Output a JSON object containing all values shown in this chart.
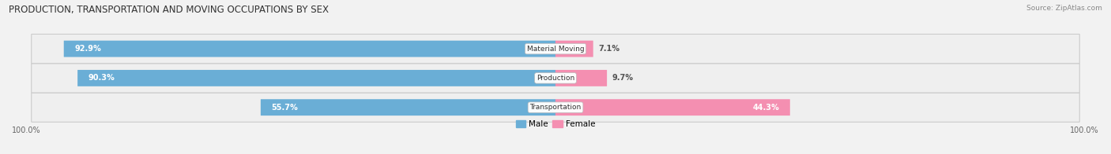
{
  "title": "PRODUCTION, TRANSPORTATION AND MOVING OCCUPATIONS BY SEX",
  "source": "Source: ZipAtlas.com",
  "categories": [
    "Material Moving",
    "Production",
    "Transportation"
  ],
  "male_pct": [
    92.9,
    90.3,
    55.7
  ],
  "female_pct": [
    7.1,
    9.7,
    44.3
  ],
  "male_color": "#6aaed6",
  "female_color": "#f48fb1",
  "male_color_light": "#aecde8",
  "female_color_light": "#f8c0d0",
  "bg_color": "#f2f2f2",
  "row_bg_color": "#e0e0e0",
  "label_white": "#ffffff",
  "label_dark": "#555555",
  "xlim_left": -100,
  "xlim_right": 100,
  "male_legend": "Male",
  "female_legend": "Female"
}
